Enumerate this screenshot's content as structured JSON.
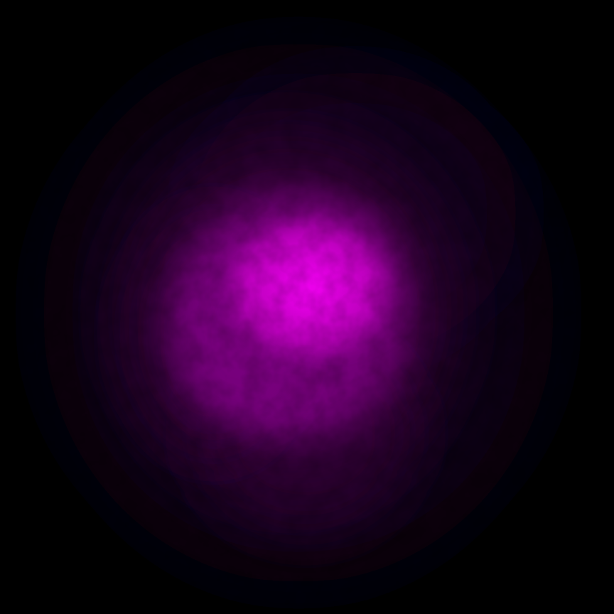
{
  "image": {
    "subject": "diffuse-glow",
    "colors": {
      "background": "#000000",
      "core": "#f000f0",
      "inner": "#c800c8",
      "mid": "#7a0080",
      "outer": "#2a0030",
      "haze": "#12001a"
    }
  }
}
